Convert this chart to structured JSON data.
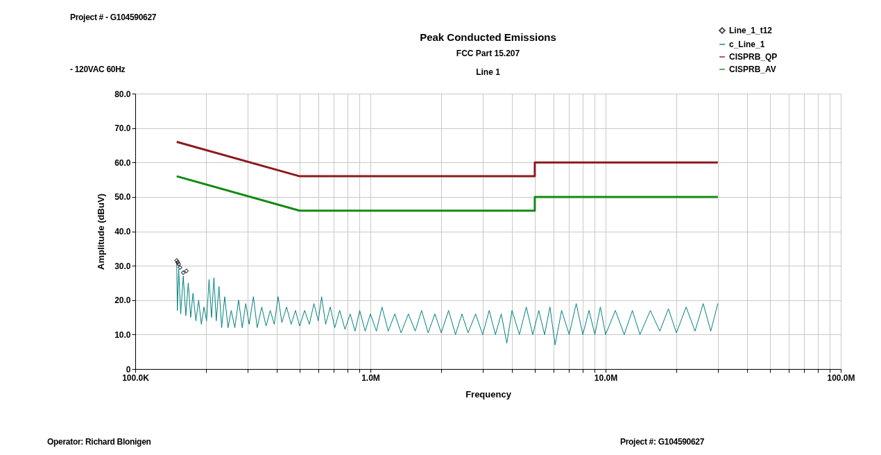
{
  "chart_data": {
    "type": "line",
    "title": "Peak Conducted Emissions",
    "subtitle": "FCC Part 15.207\nLine 1",
    "xlabel": "Frequency",
    "ylabel": "Amplitude (dBuV)",
    "annotations": [
      "Project # - G104590627",
      "- 120VAC 60Hz",
      "Operator: Richard Blonigen",
      "Project #: G104590627"
    ],
    "log": "x",
    "grid": true,
    "legend": "top right",
    "xlim": [
      100000,
      100000000
    ],
    "xticks": [
      {
        "value": 100000,
        "label": "100.0K"
      },
      {
        "value": 200000,
        "label": null
      },
      {
        "value": 300000,
        "label": null
      },
      {
        "value": 400000,
        "label": null
      },
      {
        "value": 500000,
        "label": null
      },
      {
        "value": 600000,
        "label": null
      },
      {
        "value": 700000,
        "label": null
      },
      {
        "value": 800000,
        "label": null
      },
      {
        "value": 900000,
        "label": null
      },
      {
        "value": 1000000,
        "label": "1.0M"
      },
      {
        "value": 2000000,
        "label": null
      },
      {
        "value": 3000000,
        "label": null
      },
      {
        "value": 4000000,
        "label": null
      },
      {
        "value": 5000000,
        "label": null
      },
      {
        "value": 6000000,
        "label": null
      },
      {
        "value": 7000000,
        "label": null
      },
      {
        "value": 8000000,
        "label": null
      },
      {
        "value": 9000000,
        "label": null
      },
      {
        "value": 10000000,
        "label": "10.0M"
      },
      {
        "value": 20000000,
        "label": null
      },
      {
        "value": 30000000,
        "label": null
      },
      {
        "value": 40000000,
        "label": null
      },
      {
        "value": 50000000,
        "label": null
      },
      {
        "value": 60000000,
        "label": null
      },
      {
        "value": 70000000,
        "label": null
      },
      {
        "value": 80000000,
        "label": null
      },
      {
        "value": 90000000,
        "label": null
      },
      {
        "value": 100000000,
        "label": "100.0M"
      }
    ],
    "ylim": [
      0,
      80
    ],
    "yticks": [
      0,
      {
        "value": 10,
        "label": "10.0"
      },
      {
        "value": 20,
        "label": "20.0"
      },
      {
        "value": 30,
        "label": "30.0"
      },
      {
        "value": 40,
        "label": "40.0"
      },
      {
        "value": 50,
        "label": "50.0"
      },
      {
        "value": 60,
        "label": "60.0"
      },
      {
        "value": 70,
        "label": "70.0"
      },
      {
        "value": 80,
        "label": "80.0"
      }
    ],
    "series": [
      {
        "name": "Line_1_t12",
        "type": "scatter",
        "marker": "diamond",
        "color": "#000000",
        "x": [
          150000,
          151500,
          153000,
          155000,
          160000,
          165000
        ],
        "values": [
          31.5,
          31,
          30.5,
          29.5,
          28,
          28.5
        ]
      },
      {
        "name": "c_Line_1",
        "color": "#008080",
        "x": [
          150000,
          151000,
          153000,
          156000,
          160000,
          164000,
          168000,
          172000,
          176000,
          181000,
          186000,
          191000,
          196000,
          201000,
          206000,
          211000,
          216000,
          221000,
          227000,
          233000,
          240000,
          248000,
          256000,
          265000,
          275000,
          285000,
          295000,
          305000,
          318000,
          330000,
          345000,
          360000,
          375000,
          390000,
          405000,
          420000,
          440000,
          460000,
          480000,
          500000,
          525000,
          550000,
          575000,
          600000,
          620000,
          645000,
          675000,
          705000,
          740000,
          780000,
          820000,
          860000,
          900000,
          950000,
          1000000,
          1060000,
          1120000,
          1190000,
          1270000,
          1350000,
          1450000,
          1550000,
          1650000,
          1760000,
          1880000,
          2000000,
          2150000,
          2300000,
          2450000,
          2600000,
          2800000,
          3000000,
          3200000,
          3400000,
          3600000,
          3800000,
          4000000,
          4300000,
          4600000,
          4900000,
          5200000,
          5500000,
          5800000,
          6100000,
          6500000,
          7000000,
          7500000,
          8000000,
          8500000,
          9000000,
          9500000,
          10000000,
          11000000,
          12000000,
          13000000,
          14000000,
          15500000,
          17000000,
          18500000,
          20000000,
          22000000,
          24000000,
          26000000,
          28000000,
          30000000
        ],
        "values": [
          31,
          17,
          29,
          16,
          27,
          15.5,
          25,
          15,
          22,
          14,
          20,
          13,
          18,
          14,
          26,
          15,
          26.5,
          14,
          24,
          12,
          21,
          12,
          17,
          12,
          20,
          12,
          19,
          13,
          21,
          12,
          18,
          12.5,
          17,
          13,
          21,
          13.5,
          18,
          13,
          17,
          12.5,
          17,
          13,
          19,
          14,
          21,
          13,
          18,
          12,
          17,
          11.5,
          16,
          11,
          17,
          11,
          16,
          11,
          18,
          11,
          16,
          10.5,
          16,
          11,
          17,
          10.5,
          16,
          10.5,
          17,
          10,
          16,
          10.5,
          16,
          10,
          17,
          10,
          16,
          7.5,
          17,
          10,
          18,
          10,
          17,
          10,
          18,
          7,
          17,
          10,
          19,
          10,
          17,
          10,
          18,
          10,
          17,
          10,
          17,
          10,
          17,
          11,
          17.5,
          10.5,
          18,
          11,
          19,
          11,
          19
        ]
      },
      {
        "name": "CISPRB_QP",
        "color": "#8b1a1a",
        "x": [
          150000,
          500000,
          5000000,
          5000000,
          30000000
        ],
        "values": [
          66,
          56,
          56,
          60,
          60
        ]
      },
      {
        "name": "CISPRB_AV",
        "color": "#128a12",
        "x": [
          150000,
          500000,
          5000000,
          5000000,
          30000000
        ],
        "values": [
          56,
          46,
          46,
          50,
          50
        ]
      }
    ]
  }
}
